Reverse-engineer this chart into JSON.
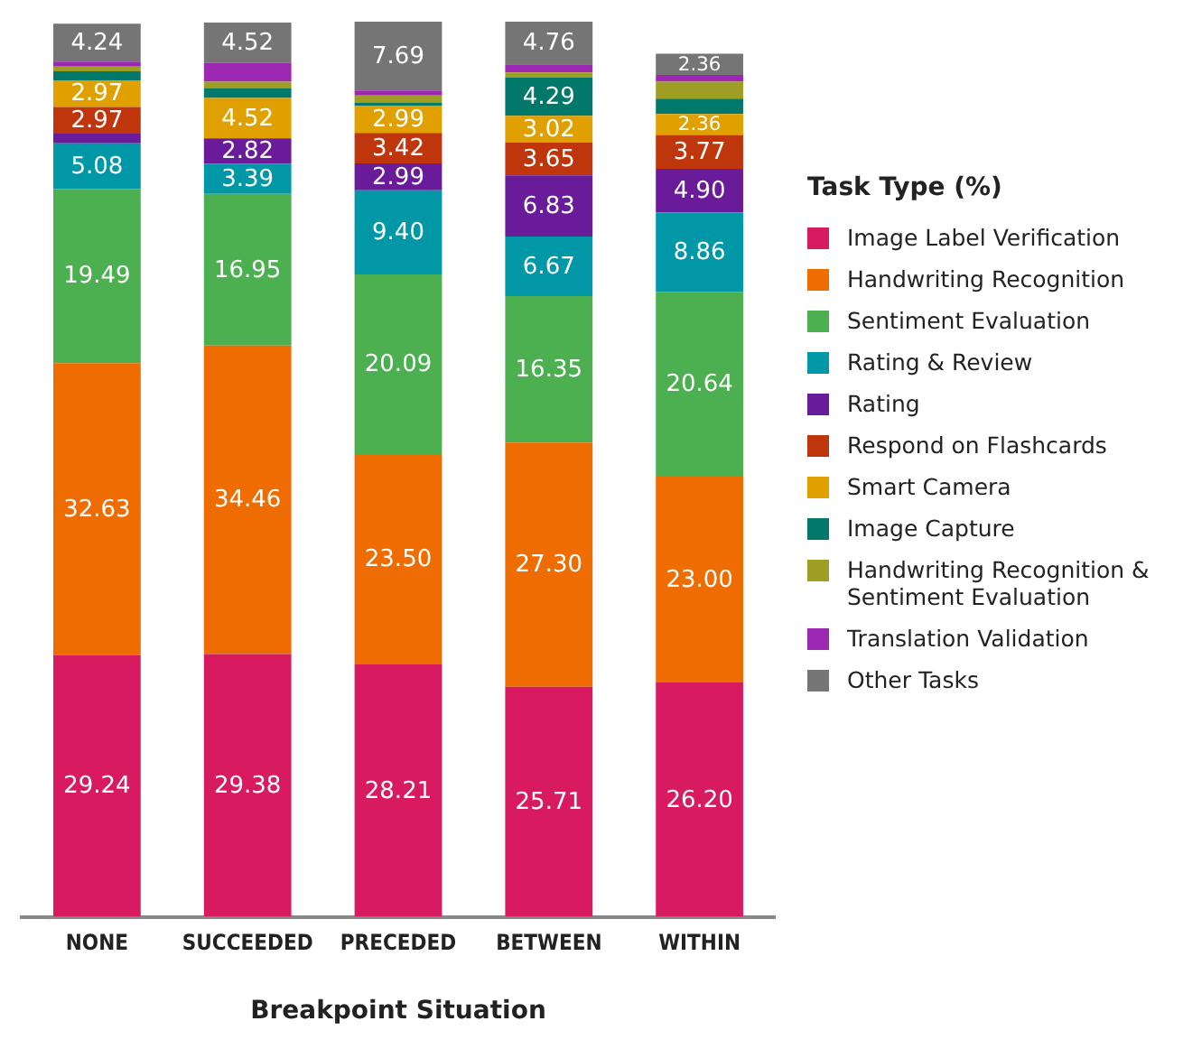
{
  "chart_data": {
    "type": "bar",
    "stacked": true,
    "xlabel": "Breakpoint Situation",
    "legend_title": "Task Type (%)",
    "legend": "right",
    "grid": false,
    "tick_labels": "x",
    "categories": [
      "NONE",
      "SUCCEEDED",
      "PRECEDED",
      "BETWEEN",
      "WITHIN"
    ],
    "series": [
      {
        "name": "Image Label Verification",
        "color": "#d81b60",
        "values": [
          29.24,
          29.38,
          28.21,
          25.71,
          26.2
        ],
        "value_labels": [
          "29.24",
          "29.38",
          "28.21",
          "25.71",
          "26.20"
        ]
      },
      {
        "name": "Handwriting Recognition",
        "color": "#ef6c00",
        "values": [
          32.63,
          34.46,
          23.5,
          27.3,
          23.0
        ],
        "value_labels": [
          "32.63",
          "34.46",
          "23.50",
          "27.30",
          "23.00"
        ]
      },
      {
        "name": "Sentiment Evaluation",
        "color": "#4caf50",
        "values": [
          19.49,
          16.95,
          20.09,
          16.35,
          20.64
        ],
        "value_labels": [
          "19.49",
          "16.95",
          "20.09",
          "16.35",
          "20.64"
        ]
      },
      {
        "name": "Rating & Review",
        "color": "#0097a7",
        "values": [
          5.08,
          3.39,
          9.4,
          6.67,
          8.86
        ],
        "value_labels": [
          "5.08",
          "3.39",
          "9.40",
          "6.67",
          "8.86"
        ]
      },
      {
        "name": "Rating",
        "color": "#6a1b9a",
        "values": [
          1.1,
          2.82,
          2.99,
          6.83,
          4.9
        ],
        "value_labels": [
          null,
          "2.82",
          "2.99",
          "6.83",
          "4.90"
        ]
      },
      {
        "name": "Respond on Flashcards",
        "color": "#bf360c",
        "values": [
          2.97,
          0,
          3.42,
          3.65,
          3.77
        ],
        "value_labels": [
          "2.97",
          null,
          "3.42",
          "3.65",
          "3.77"
        ]
      },
      {
        "name": "Smart Camera",
        "color": "#e0a000",
        "values": [
          2.97,
          4.52,
          2.99,
          3.02,
          2.36
        ],
        "value_labels": [
          "2.97",
          "4.52",
          "2.99",
          "3.02",
          "2.36"
        ]
      },
      {
        "name": "Image Capture",
        "color": "#00796b",
        "values": [
          1.0,
          1.1,
          0.35,
          4.29,
          1.7
        ],
        "value_labels": [
          null,
          null,
          null,
          "4.29",
          null
        ]
      },
      {
        "name": "Handwriting Recognition & Sentiment Evaluation",
        "color": "#9e9d24",
        "values": [
          0.55,
          0.7,
          0.85,
          0.55,
          1.9
        ],
        "value_labels": [
          null,
          null,
          null,
          null,
          null
        ]
      },
      {
        "name": "Translation Validation",
        "color": "#9c27b0",
        "values": [
          0.55,
          2.1,
          0.55,
          0.9,
          0.76
        ],
        "value_labels": [
          null,
          null,
          null,
          null,
          null
        ]
      },
      {
        "name": "Other Tasks",
        "color": "#757575",
        "values": [
          4.24,
          4.52,
          7.69,
          4.76,
          2.36
        ],
        "value_labels": [
          "4.24",
          "4.52",
          "7.69",
          "4.76",
          "2.36"
        ]
      }
    ]
  }
}
